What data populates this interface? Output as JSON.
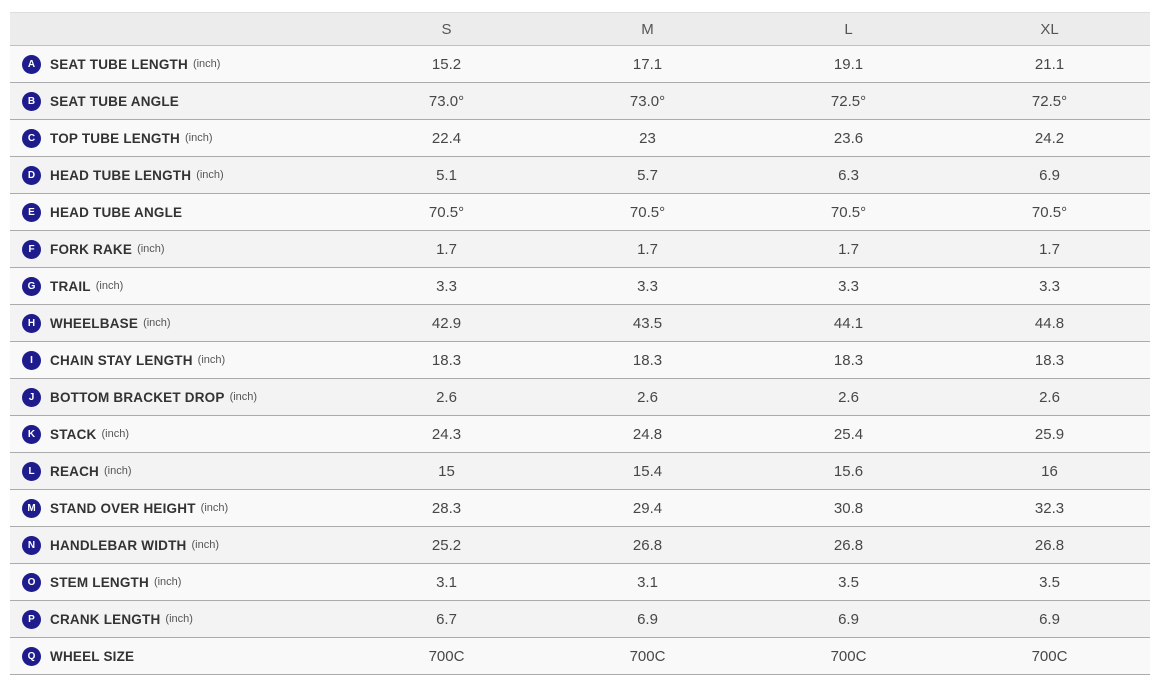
{
  "table": {
    "columns": [
      "S",
      "M",
      "L",
      "XL"
    ],
    "rows": [
      {
        "key": "A",
        "label": "SEAT TUBE LENGTH",
        "unit": "(inch)",
        "values": [
          "15.2",
          "17.1",
          "19.1",
          "21.1"
        ]
      },
      {
        "key": "B",
        "label": "SEAT TUBE ANGLE",
        "unit": "",
        "values": [
          "73.0°",
          "73.0°",
          "72.5°",
          "72.5°"
        ]
      },
      {
        "key": "C",
        "label": "TOP TUBE LENGTH",
        "unit": "(inch)",
        "values": [
          "22.4",
          "23",
          "23.6",
          "24.2"
        ]
      },
      {
        "key": "D",
        "label": "HEAD TUBE LENGTH",
        "unit": "(inch)",
        "values": [
          "5.1",
          "5.7",
          "6.3",
          "6.9"
        ]
      },
      {
        "key": "E",
        "label": "HEAD TUBE ANGLE",
        "unit": "",
        "values": [
          "70.5°",
          "70.5°",
          "70.5°",
          "70.5°"
        ]
      },
      {
        "key": "F",
        "label": "FORK RAKE",
        "unit": "(inch)",
        "values": [
          "1.7",
          "1.7",
          "1.7",
          "1.7"
        ]
      },
      {
        "key": "G",
        "label": "TRAIL",
        "unit": "(inch)",
        "values": [
          "3.3",
          "3.3",
          "3.3",
          "3.3"
        ]
      },
      {
        "key": "H",
        "label": "WHEELBASE",
        "unit": "(inch)",
        "values": [
          "42.9",
          "43.5",
          "44.1",
          "44.8"
        ]
      },
      {
        "key": "I",
        "label": "CHAIN STAY LENGTH",
        "unit": "(inch)",
        "values": [
          "18.3",
          "18.3",
          "18.3",
          "18.3"
        ]
      },
      {
        "key": "J",
        "label": "BOTTOM BRACKET DROP",
        "unit": "(inch)",
        "values": [
          "2.6",
          "2.6",
          "2.6",
          "2.6"
        ]
      },
      {
        "key": "K",
        "label": "STACK",
        "unit": "(inch)",
        "values": [
          "24.3",
          "24.8",
          "25.4",
          "25.9"
        ]
      },
      {
        "key": "L",
        "label": "REACH",
        "unit": "(inch)",
        "values": [
          "15",
          "15.4",
          "15.6",
          "16"
        ]
      },
      {
        "key": "M",
        "label": "STAND OVER HEIGHT",
        "unit": "(inch)",
        "values": [
          "28.3",
          "29.4",
          "30.8",
          "32.3"
        ]
      },
      {
        "key": "N",
        "label": "HANDLEBAR WIDTH",
        "unit": "(inch)",
        "values": [
          "25.2",
          "26.8",
          "26.8",
          "26.8"
        ]
      },
      {
        "key": "O",
        "label": "STEM LENGTH",
        "unit": "(inch)",
        "values": [
          "3.1",
          "3.1",
          "3.5",
          "3.5"
        ]
      },
      {
        "key": "P",
        "label": "CRANK LENGTH",
        "unit": "(inch)",
        "values": [
          "6.7",
          "6.9",
          "6.9",
          "6.9"
        ]
      },
      {
        "key": "Q",
        "label": "WHEEL SIZE",
        "unit": "",
        "values": [
          "700C",
          "700C",
          "700C",
          "700C"
        ]
      }
    ],
    "colors": {
      "badge": "#1e1b8d",
      "header_bg": "#ececec",
      "row_odd_bg": "#f9f9f9",
      "row_even_bg": "#f3f3f3",
      "border": "#ababab"
    }
  }
}
